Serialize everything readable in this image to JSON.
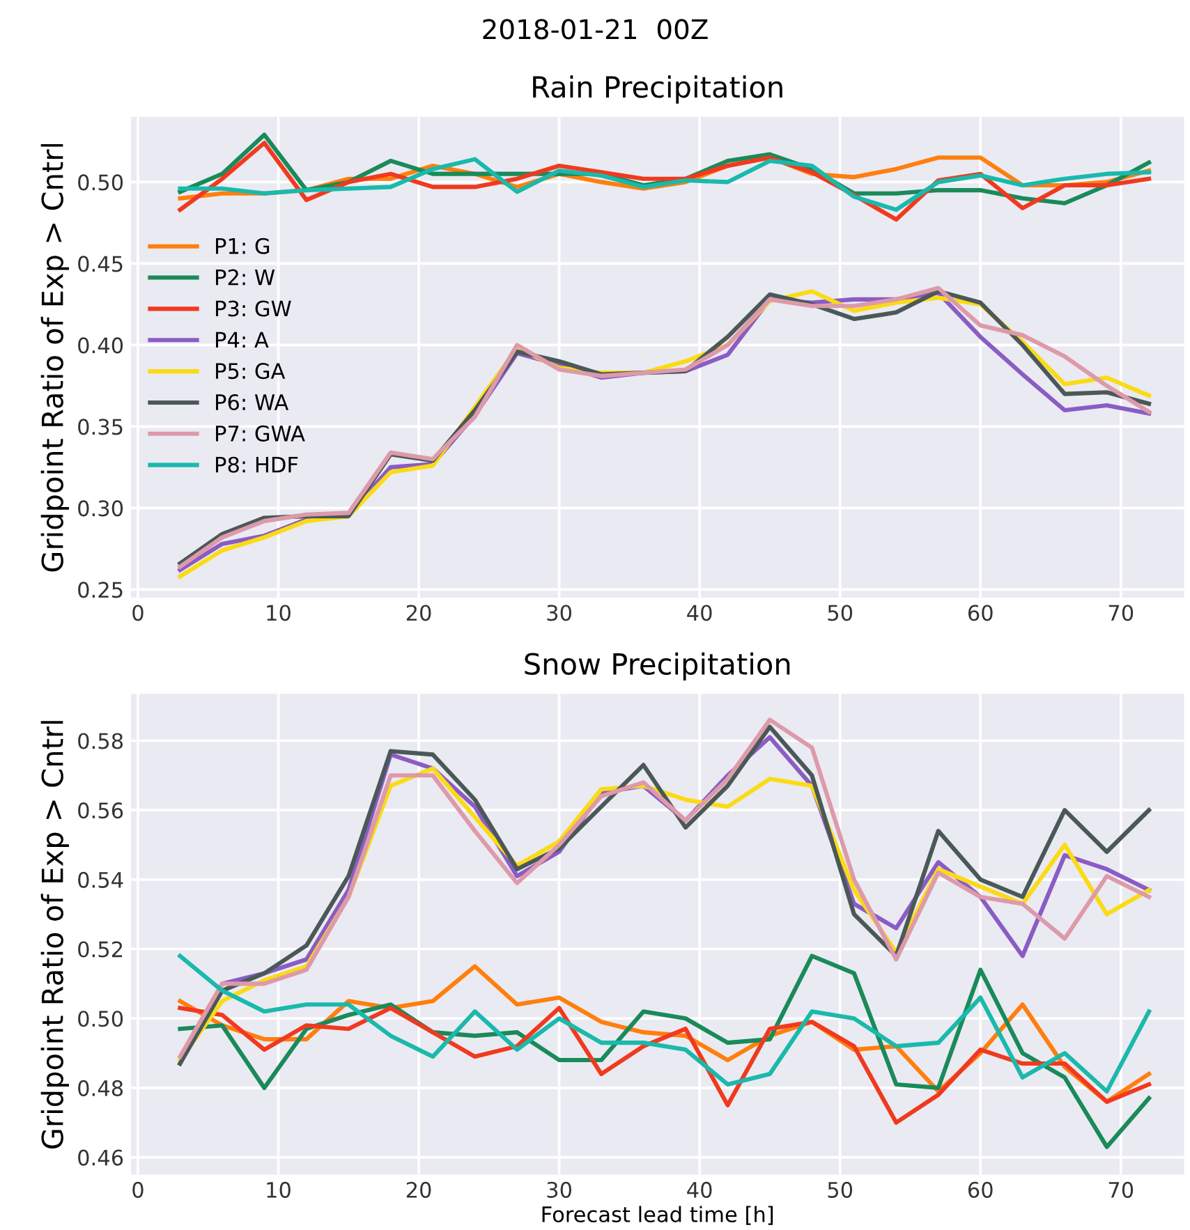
{
  "chart_data": [
    {
      "type": "line",
      "title": "Rain Precipitation",
      "annotations": [
        "2018-01-21  00Z"
      ],
      "ylabel": "Gridpoint Ratio of Exp > Cntrl",
      "legend": "left",
      "grid": true,
      "line_style": "solid",
      "x": [
        3,
        6,
        9,
        12,
        15,
        18,
        21,
        24,
        27,
        30,
        33,
        36,
        39,
        42,
        45,
        48,
        51,
        54,
        57,
        60,
        63,
        66,
        69,
        72
      ],
      "xlim": [
        -0.5,
        74.5
      ],
      "xticks": [
        0,
        10,
        20,
        30,
        40,
        50,
        60,
        70
      ],
      "ylim": [
        0.245,
        0.54
      ],
      "yticks": [
        {
          "value": 0.25,
          "label": "0.25"
        },
        {
          "value": 0.3,
          "label": "0.30"
        },
        {
          "value": 0.35,
          "label": "0.35"
        },
        {
          "value": 0.4,
          "label": "0.40"
        },
        {
          "value": 0.45,
          "label": "0.45"
        },
        {
          "value": 0.5,
          "label": "0.50"
        }
      ],
      "series": [
        {
          "name": "P1: G",
          "color": "#ff7f0e",
          "values": [
            0.49,
            0.493,
            0.493,
            0.495,
            0.502,
            0.502,
            0.51,
            0.505,
            0.497,
            0.505,
            0.5,
            0.496,
            0.5,
            0.51,
            0.515,
            0.505,
            0.503,
            0.508,
            0.515,
            0.515,
            0.498,
            0.498,
            0.5,
            0.507
          ]
        },
        {
          "name": "P2: W",
          "color": "#1a8a5a",
          "values": [
            0.494,
            0.505,
            0.529,
            0.495,
            0.5,
            0.513,
            0.505,
            0.505,
            0.505,
            0.505,
            0.505,
            0.498,
            0.502,
            0.513,
            0.517,
            0.508,
            0.493,
            0.493,
            0.495,
            0.495,
            0.49,
            0.487,
            0.498,
            0.512
          ]
        },
        {
          "name": "P3: GW",
          "color": "#f03a1f",
          "values": [
            0.483,
            0.502,
            0.524,
            0.489,
            0.5,
            0.505,
            0.497,
            0.497,
            0.502,
            0.51,
            0.506,
            0.502,
            0.502,
            0.51,
            0.515,
            0.506,
            0.492,
            0.477,
            0.501,
            0.505,
            0.484,
            0.498,
            0.498,
            0.502
          ]
        },
        {
          "name": "P4: A",
          "color": "#8a5cc4",
          "values": [
            0.262,
            0.278,
            0.283,
            0.293,
            0.296,
            0.325,
            0.327,
            0.357,
            0.395,
            0.388,
            0.38,
            0.383,
            0.384,
            0.394,
            0.428,
            0.426,
            0.428,
            0.428,
            0.432,
            0.405,
            0.382,
            0.36,
            0.363,
            0.358
          ]
        },
        {
          "name": "P5: GA",
          "color": "#fadb14",
          "values": [
            0.258,
            0.274,
            0.282,
            0.292,
            0.295,
            0.322,
            0.326,
            0.362,
            0.398,
            0.386,
            0.383,
            0.383,
            0.39,
            0.4,
            0.427,
            0.433,
            0.421,
            0.426,
            0.429,
            0.425,
            0.402,
            0.376,
            0.38,
            0.369
          ]
        },
        {
          "name": "P6: WA",
          "color": "#4b5858",
          "values": [
            0.266,
            0.284,
            0.294,
            0.295,
            0.295,
            0.333,
            0.329,
            0.36,
            0.396,
            0.39,
            0.382,
            0.383,
            0.384,
            0.405,
            0.431,
            0.425,
            0.416,
            0.42,
            0.433,
            0.426,
            0.4,
            0.37,
            0.371,
            0.364
          ]
        },
        {
          "name": "P7: GWA",
          "color": "#dd9aaa",
          "values": [
            0.264,
            0.282,
            0.292,
            0.296,
            0.297,
            0.334,
            0.33,
            0.356,
            0.4,
            0.385,
            0.381,
            0.383,
            0.385,
            0.4,
            0.428,
            0.424,
            0.424,
            0.428,
            0.435,
            0.412,
            0.406,
            0.393,
            0.375,
            0.359
          ]
        },
        {
          "name": "P8: HDF",
          "color": "#1ab9ac",
          "values": [
            0.496,
            0.496,
            0.493,
            0.495,
            0.496,
            0.497,
            0.508,
            0.514,
            0.494,
            0.507,
            0.504,
            0.497,
            0.501,
            0.5,
            0.513,
            0.51,
            0.491,
            0.483,
            0.5,
            0.504,
            0.498,
            0.502,
            0.505,
            0.506
          ]
        }
      ]
    },
    {
      "type": "line",
      "title": "Snow Precipitation",
      "ylabel": "Gridpoint Ratio of Exp > Cntrl",
      "xlabel": "Forecast lead time [h]",
      "grid": true,
      "line_style": "solid",
      "x": [
        3,
        6,
        9,
        12,
        15,
        18,
        21,
        24,
        27,
        30,
        33,
        36,
        39,
        42,
        45,
        48,
        51,
        54,
        57,
        60,
        63,
        66,
        69,
        72
      ],
      "xlim": [
        -0.5,
        74.5
      ],
      "xticks": [
        0,
        10,
        20,
        30,
        40,
        50,
        60,
        70
      ],
      "ylim": [
        0.455,
        0.5935
      ],
      "yticks": [
        {
          "value": 0.46,
          "label": "0.46"
        },
        {
          "value": 0.48,
          "label": "0.48"
        },
        {
          "value": 0.5,
          "label": "0.50"
        },
        {
          "value": 0.52,
          "label": "0.52"
        },
        {
          "value": 0.54,
          "label": "0.54"
        },
        {
          "value": 0.56,
          "label": "0.56"
        },
        {
          "value": 0.58,
          "label": "0.58"
        }
      ],
      "series": [
        {
          "color": "#ff7f0e",
          "values": [
            0.505,
            0.498,
            0.494,
            0.494,
            0.505,
            0.503,
            0.505,
            0.515,
            0.504,
            0.506,
            0.499,
            0.496,
            0.495,
            0.488,
            0.495,
            0.499,
            0.491,
            0.492,
            0.479,
            0.49,
            0.504,
            0.486,
            0.476,
            0.484
          ]
        },
        {
          "color": "#1a8a5a",
          "values": [
            0.497,
            0.498,
            0.48,
            0.497,
            0.501,
            0.504,
            0.496,
            0.495,
            0.496,
            0.488,
            0.488,
            0.502,
            0.5,
            0.493,
            0.494,
            0.518,
            0.513,
            0.481,
            0.48,
            0.514,
            0.49,
            0.483,
            0.463,
            0.477
          ]
        },
        {
          "color": "#f03a1f",
          "values": [
            0.503,
            0.501,
            0.491,
            0.498,
            0.497,
            0.503,
            0.496,
            0.489,
            0.492,
            0.503,
            0.484,
            0.492,
            0.497,
            0.475,
            0.497,
            0.499,
            0.492,
            0.47,
            0.478,
            0.491,
            0.487,
            0.487,
            0.476,
            0.481
          ]
        },
        {
          "color": "#8a5cc4",
          "values": [
            0.487,
            0.51,
            0.513,
            0.517,
            0.537,
            0.576,
            0.572,
            0.561,
            0.541,
            0.548,
            0.565,
            0.567,
            0.557,
            0.57,
            0.581,
            0.567,
            0.533,
            0.526,
            0.545,
            0.535,
            0.518,
            0.547,
            0.543,
            0.537
          ]
        },
        {
          "color": "#fadb14",
          "values": [
            0.488,
            0.505,
            0.511,
            0.515,
            0.535,
            0.567,
            0.572,
            0.558,
            0.544,
            0.551,
            0.566,
            0.567,
            0.563,
            0.561,
            0.569,
            0.567,
            0.537,
            0.519,
            0.543,
            0.538,
            0.533,
            0.55,
            0.53,
            0.537
          ]
        },
        {
          "color": "#4b5858",
          "values": [
            0.487,
            0.508,
            0.513,
            0.521,
            0.541,
            0.577,
            0.576,
            0.563,
            0.543,
            0.549,
            0.561,
            0.573,
            0.555,
            0.567,
            0.584,
            0.57,
            0.53,
            0.518,
            0.554,
            0.54,
            0.535,
            0.56,
            0.548,
            0.56
          ]
        },
        {
          "color": "#dd9aaa",
          "values": [
            0.489,
            0.51,
            0.51,
            0.514,
            0.535,
            0.57,
            0.57,
            0.554,
            0.539,
            0.55,
            0.564,
            0.568,
            0.557,
            0.569,
            0.586,
            0.578,
            0.54,
            0.517,
            0.542,
            0.535,
            0.533,
            0.523,
            0.541,
            0.535
          ]
        },
        {
          "color": "#1ab9ac",
          "values": [
            0.518,
            0.508,
            0.502,
            0.504,
            0.504,
            0.495,
            0.489,
            0.502,
            0.491,
            0.5,
            0.493,
            0.493,
            0.491,
            0.481,
            0.484,
            0.502,
            0.5,
            0.492,
            0.493,
            0.506,
            0.483,
            0.49,
            0.479,
            0.502
          ]
        }
      ]
    }
  ]
}
